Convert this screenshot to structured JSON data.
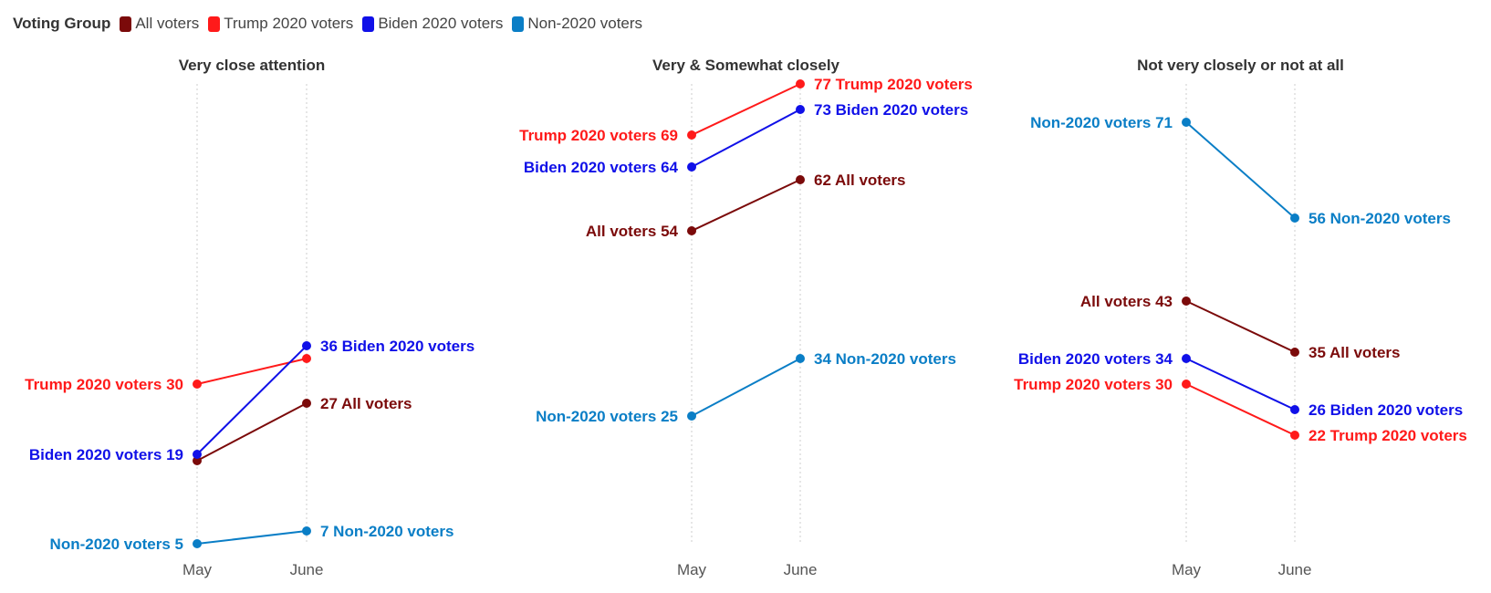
{
  "legend": {
    "title": "Voting Group",
    "items": [
      {
        "label": "All voters",
        "color": "#7b0a0a"
      },
      {
        "label": "Trump 2020 voters",
        "color": "#ff1a1a"
      },
      {
        "label": "Biden 2020 voters",
        "color": "#1010e8"
      },
      {
        "label": "Non-2020 voters",
        "color": "#0a7ec6"
      }
    ]
  },
  "chart_data": [
    {
      "type": "line",
      "title": "Very close attention",
      "x": [
        "May",
        "June"
      ],
      "series": [
        {
          "name": "All voters",
          "values": [
            18,
            27
          ],
          "label_start": "",
          "label_end": "27 All voters"
        },
        {
          "name": "Trump 2020 voters",
          "values": [
            30,
            34
          ],
          "label_start": "Trump 2020 voters 30",
          "label_end": ""
        },
        {
          "name": "Biden 2020 voters",
          "values": [
            19,
            36
          ],
          "label_start": "Biden 2020 voters 19",
          "label_end": "36 Biden 2020 voters"
        },
        {
          "name": "Non-2020 voters",
          "values": [
            5,
            7
          ],
          "label_start": "Non-2020 voters 5",
          "label_end": "7 Non-2020 voters"
        }
      ]
    },
    {
      "type": "line",
      "title": "Very & Somewhat closely",
      "x": [
        "May",
        "June"
      ],
      "series": [
        {
          "name": "All voters",
          "values": [
            54,
            62
          ],
          "label_start": "All voters 54",
          "label_end": "62 All voters"
        },
        {
          "name": "Trump 2020 voters",
          "values": [
            69,
            77
          ],
          "label_start": "Trump 2020 voters 69",
          "label_end": "77 Trump 2020 voters"
        },
        {
          "name": "Biden 2020 voters",
          "values": [
            64,
            73
          ],
          "label_start": "Biden 2020 voters 64",
          "label_end": "73 Biden 2020 voters"
        },
        {
          "name": "Non-2020 voters",
          "values": [
            25,
            34
          ],
          "label_start": "Non-2020 voters 25",
          "label_end": "34 Non-2020 voters"
        }
      ]
    },
    {
      "type": "line",
      "title": "Not very closely or not at all",
      "x": [
        "May",
        "June"
      ],
      "series": [
        {
          "name": "All voters",
          "values": [
            43,
            35
          ],
          "label_start": "All voters 43",
          "label_end": "35 All voters"
        },
        {
          "name": "Trump 2020 voters",
          "values": [
            30,
            22
          ],
          "label_start": "Trump 2020 voters 30",
          "label_end": "22 Trump 2020 voters"
        },
        {
          "name": "Biden 2020 voters",
          "values": [
            34,
            26
          ],
          "label_start": "Biden 2020 voters 34",
          "label_end": "26 Biden 2020 voters"
        },
        {
          "name": "Non-2020 voters",
          "values": [
            71,
            56
          ],
          "label_start": "Non-2020 voters 71",
          "label_end": "56 Non-2020 voters"
        }
      ]
    }
  ]
}
